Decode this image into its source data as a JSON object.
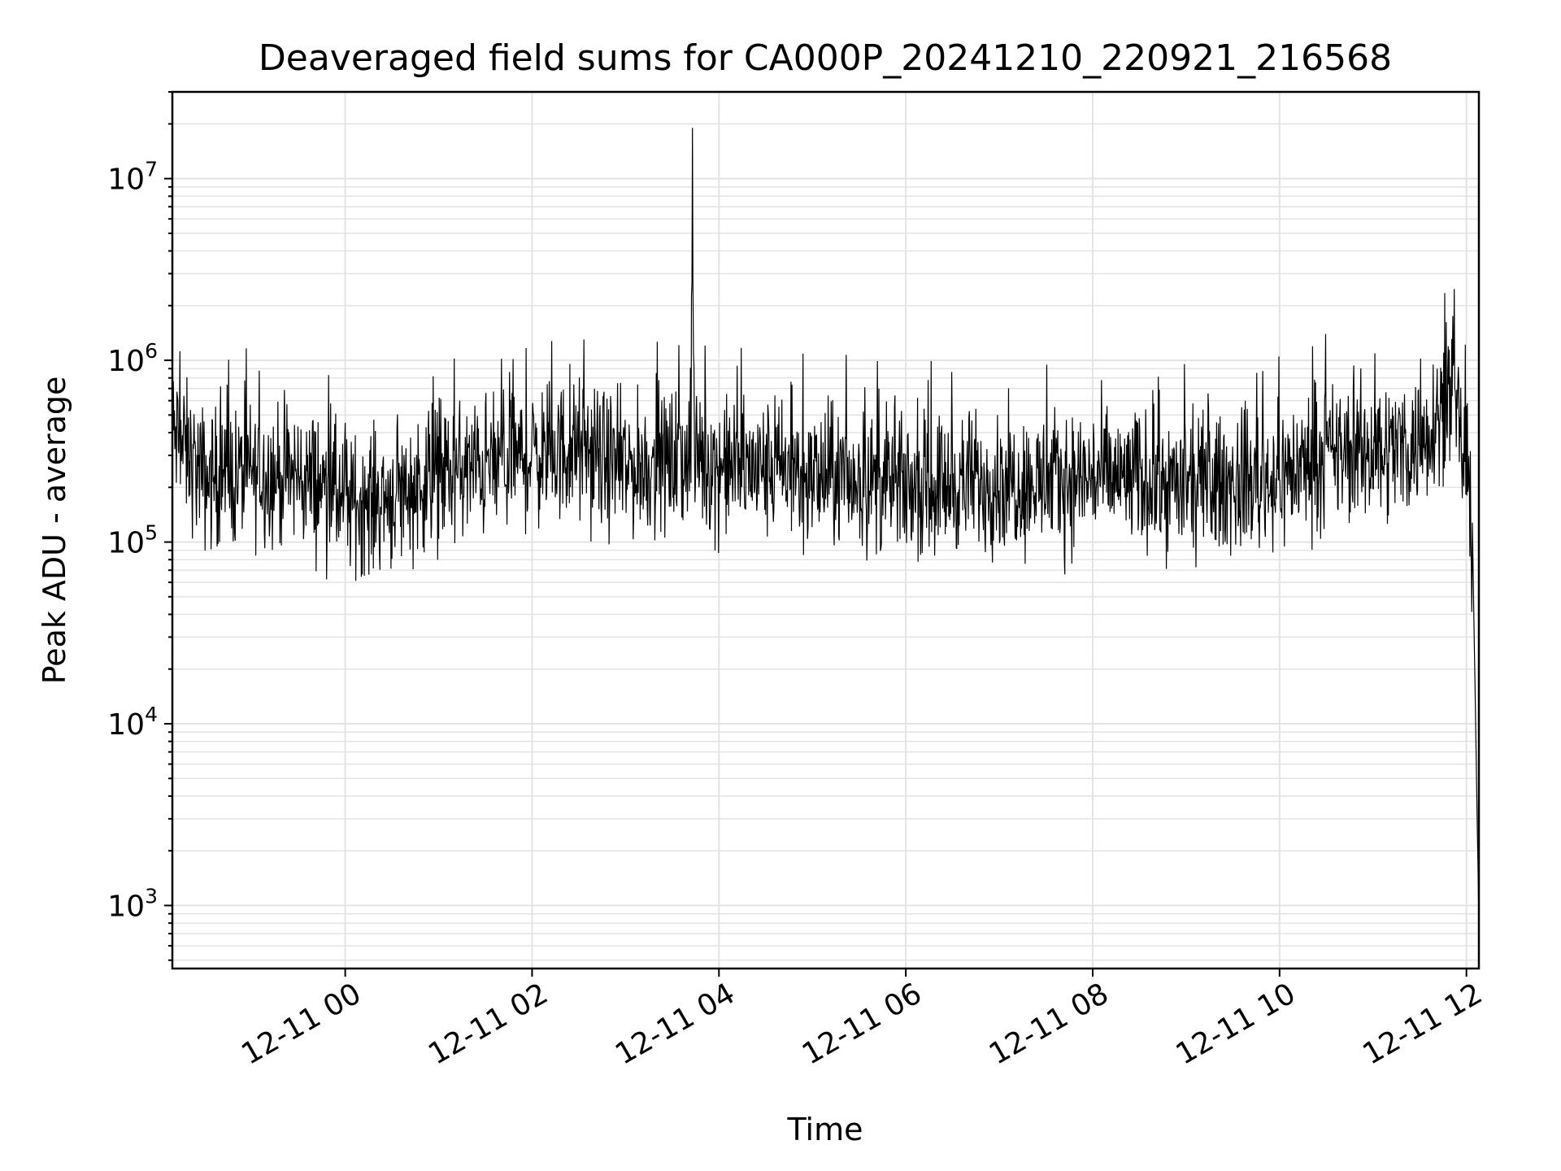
{
  "chart_data": {
    "type": "line",
    "title": "Deaveraged field sums for CA000P_20241210_220921_216568",
    "xlabel": "Time",
    "ylabel": "Peak ADU - average",
    "yscale": "log",
    "ylim": [
      450,
      30000000
    ],
    "xlim": [
      "2024-12-10 22:09",
      "2024-12-11 12:08"
    ],
    "grid": true,
    "line_color": "#000000",
    "x_ticks": [
      {
        "label": "12-11 00",
        "value": "2024-12-11 00:00"
      },
      {
        "label": "12-11 02",
        "value": "2024-12-11 02:00"
      },
      {
        "label": "12-11 04",
        "value": "2024-12-11 04:00"
      },
      {
        "label": "12-11 06",
        "value": "2024-12-11 06:00"
      },
      {
        "label": "12-11 08",
        "value": "2024-12-11 08:00"
      },
      {
        "label": "12-11 10",
        "value": "2024-12-11 10:00"
      },
      {
        "label": "12-11 12",
        "value": "2024-12-11 12:00"
      }
    ],
    "y_ticks": [
      {
        "mantissa": "10",
        "exp": "3",
        "value": 1000
      },
      {
        "mantissa": "10",
        "exp": "4",
        "value": 10000
      },
      {
        "mantissa": "10",
        "exp": "5",
        "value": 100000
      },
      {
        "mantissa": "10",
        "exp": "6",
        "value": 1000000
      },
      {
        "mantissa": "10",
        "exp": "7",
        "value": 10000000
      }
    ],
    "series": [
      {
        "x": [
          "2024-12-10 22:09",
          "2024-12-10 22:30",
          "2024-12-10 23:00",
          "2024-12-10 23:30",
          "2024-12-10 23:50",
          "2024-12-11 00:00",
          "2024-12-11 00:30",
          "2024-12-11 01:00",
          "2024-12-11 01:30",
          "2024-12-11 02:00",
          "2024-12-11 02:30",
          "2024-12-11 03:00",
          "2024-12-11 03:30",
          "2024-12-11 03:42",
          "2024-12-11 03:43",
          "2024-12-11 03:44",
          "2024-12-11 04:00",
          "2024-12-11 04:30",
          "2024-12-11 05:00",
          "2024-12-11 05:30",
          "2024-12-11 06:00",
          "2024-12-11 06:30",
          "2024-12-11 07:00",
          "2024-12-11 07:30",
          "2024-12-11 08:00",
          "2024-12-11 08:30",
          "2024-12-11 09:00",
          "2024-12-11 09:30",
          "2024-12-11 10:00",
          "2024-12-11 10:30",
          "2024-12-11 11:00",
          "2024-12-11 11:30",
          "2024-12-11 11:50",
          "2024-12-11 12:00",
          "2024-12-11 12:04",
          "2024-12-11 12:08"
        ],
        "y": [
          400000,
          220000,
          240000,
          230000,
          200000,
          160000,
          180000,
          230000,
          260000,
          300000,
          320000,
          250000,
          280000,
          300000,
          19000000,
          300000,
          260000,
          250000,
          230000,
          220000,
          200000,
          210000,
          220000,
          210000,
          230000,
          220000,
          200000,
          210000,
          230000,
          300000,
          320000,
          350000,
          700000,
          250000,
          100000,
          800
        ],
        "noise_band": {
          "low": 55000,
          "high": 900000
        }
      }
    ]
  }
}
